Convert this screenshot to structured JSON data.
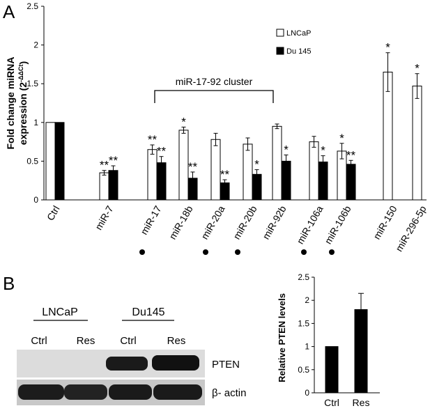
{
  "panel_a": {
    "label": "A",
    "ylabel_line1": "Fold change miRNA",
    "ylabel_line2": "expression (2",
    "ylabel_sup": "-ΔΔCt",
    "ylabel_close": ")",
    "cluster_label": "miR-17-92 cluster"
  },
  "panel_b": {
    "label": "B",
    "blot": {
      "group1": "LNCaP",
      "group2": "Du145",
      "lanes": [
        "Ctrl",
        "Res",
        "Ctrl",
        "Res"
      ],
      "band1": "PTEN",
      "band2": "β- actin"
    },
    "ylabel": "Relative PTEN levels"
  },
  "colors": {
    "series1": "#ffffff",
    "series2": "#000000",
    "stroke": "#000000"
  },
  "chart_data": [
    {
      "type": "bar",
      "categories": [
        "Ctrl",
        "miR-7",
        "miR-17",
        "miR-18b",
        "miR-20a",
        "miR-20b",
        "miR-92b",
        "miR-106a",
        "miR-106b",
        "miR-150",
        "miR-296-5p"
      ],
      "ylim": [
        0,
        2.5
      ],
      "yticks": [
        "0",
        "0.5",
        "1",
        "1.5",
        "2",
        "2.5"
      ],
      "legend_position": "top-right",
      "series": [
        {
          "name": "LNCaP",
          "values": [
            1.0,
            0.35,
            0.65,
            0.9,
            0.78,
            0.72,
            0.95,
            0.75,
            0.63,
            1.65,
            1.47
          ],
          "errors": [
            0,
            0.03,
            0.06,
            0.04,
            0.08,
            0.08,
            0.03,
            0.07,
            0.1,
            0.25,
            0.16
          ],
          "annotations": [
            "",
            "**",
            "**",
            "*",
            "",
            "",
            "",
            "",
            "*",
            "*",
            "*"
          ]
        },
        {
          "name": "Du 145",
          "values": [
            1.0,
            0.38,
            0.48,
            0.28,
            0.22,
            0.33,
            0.5,
            0.49,
            0.46,
            null,
            null
          ],
          "errors": [
            0,
            0.06,
            0.08,
            0.08,
            0.04,
            0.06,
            0.08,
            0.08,
            0.05,
            null,
            null
          ],
          "annotations": [
            "",
            "**",
            "**",
            "**",
            "**",
            "*",
            "*",
            "*",
            "**",
            "",
            ""
          ]
        }
      ],
      "marked_categories": [
        "miR-17",
        "miR-20a",
        "miR-20b",
        "miR-106a",
        "miR-106b"
      ]
    },
    {
      "type": "bar",
      "categories": [
        "Ctrl",
        "Res"
      ],
      "values": [
        1.0,
        1.8
      ],
      "errors": [
        0,
        0.35
      ],
      "ylim": [
        0,
        2.5
      ],
      "yticks": [
        "0",
        "0.5",
        "1",
        "1.5",
        "2",
        "2.5"
      ]
    }
  ]
}
